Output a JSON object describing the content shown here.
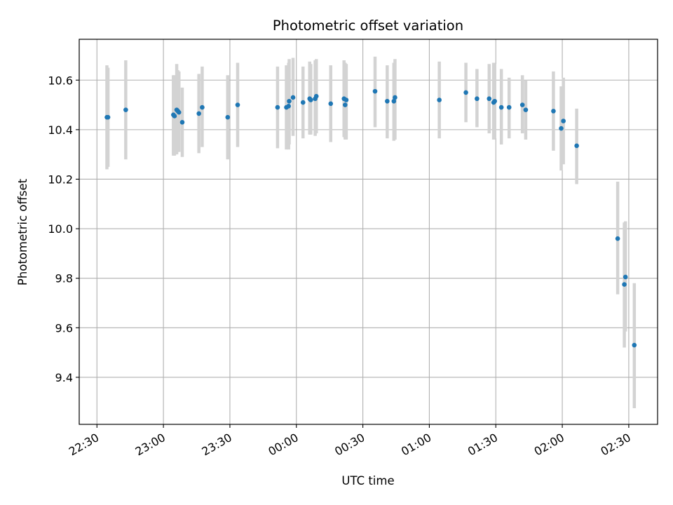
{
  "chart_data": {
    "type": "scatter",
    "title": "Photometric offset variation",
    "xlabel": "UTC time",
    "ylabel": "Photometric offset",
    "xlim": [
      "22:22",
      "02:43"
    ],
    "ylim": [
      9.21,
      10.765
    ],
    "grid": true,
    "legend": "none",
    "x_ticks": [
      "22:30",
      "23:00",
      "23:30",
      "00:00",
      "00:30",
      "01:00",
      "01:30",
      "02:00",
      "02:30"
    ],
    "y_ticks": [
      "9.4",
      "9.6",
      "9.8",
      "10.0",
      "10.2",
      "10.4",
      "10.6"
    ],
    "colors": {
      "point": "#1f77b4",
      "errorbar": "#d3d3d3",
      "grid": "#b0b0b0"
    },
    "series": [
      {
        "points": [
          {
            "x": "22:34:30",
            "y": 10.45,
            "lo": 10.24,
            "hi": 10.66
          },
          {
            "x": "22:35:00",
            "y": 10.45,
            "lo": 10.25,
            "hi": 10.65
          },
          {
            "x": "22:43:00",
            "y": 10.48,
            "lo": 10.28,
            "hi": 10.68
          },
          {
            "x": "23:04:30",
            "y": 10.46,
            "lo": 10.295,
            "hi": 10.62
          },
          {
            "x": "23:05:00",
            "y": 10.455,
            "lo": 10.295,
            "hi": 10.62
          },
          {
            "x": "23:06:00",
            "y": 10.48,
            "lo": 10.3,
            "hi": 10.665
          },
          {
            "x": "23:06:30",
            "y": 10.475,
            "lo": 10.31,
            "hi": 10.64
          },
          {
            "x": "23:07:00",
            "y": 10.47,
            "lo": 10.31,
            "hi": 10.635
          },
          {
            "x": "23:08:30",
            "y": 10.43,
            "lo": 10.29,
            "hi": 10.57
          },
          {
            "x": "23:16:00",
            "y": 10.465,
            "lo": 10.305,
            "hi": 10.625
          },
          {
            "x": "23:17:30",
            "y": 10.49,
            "lo": 10.33,
            "hi": 10.655
          },
          {
            "x": "23:29:00",
            "y": 10.45,
            "lo": 10.28,
            "hi": 10.62
          },
          {
            "x": "23:33:30",
            "y": 10.5,
            "lo": 10.33,
            "hi": 10.67
          },
          {
            "x": "23:51:30",
            "y": 10.49,
            "lo": 10.325,
            "hi": 10.655
          },
          {
            "x": "23:55:30",
            "y": 10.49,
            "lo": 10.32,
            "hi": 10.66
          },
          {
            "x": "23:56:30",
            "y": 10.495,
            "lo": 10.32,
            "hi": 10.67
          },
          {
            "x": "23:56:45",
            "y": 10.515,
            "lo": 10.34,
            "hi": 10.685
          },
          {
            "x": "23:58:30",
            "y": 10.53,
            "lo": 10.375,
            "hi": 10.69
          },
          {
            "x": "00:03:00",
            "y": 10.51,
            "lo": 10.365,
            "hi": 10.655
          },
          {
            "x": "00:06:00",
            "y": 10.525,
            "lo": 10.38,
            "hi": 10.675
          },
          {
            "x": "00:06:30",
            "y": 10.52,
            "lo": 10.38,
            "hi": 10.665
          },
          {
            "x": "00:08:30",
            "y": 10.525,
            "lo": 10.375,
            "hi": 10.68
          },
          {
            "x": "00:09:00",
            "y": 10.535,
            "lo": 10.385,
            "hi": 10.685
          },
          {
            "x": "00:15:30",
            "y": 10.505,
            "lo": 10.35,
            "hi": 10.66
          },
          {
            "x": "00:21:30",
            "y": 10.525,
            "lo": 10.37,
            "hi": 10.68
          },
          {
            "x": "00:22:00",
            "y": 10.5,
            "lo": 10.36,
            "hi": 10.67
          },
          {
            "x": "00:22:30",
            "y": 10.52,
            "lo": 10.36,
            "hi": 10.665
          },
          {
            "x": "00:35:30",
            "y": 10.555,
            "lo": 10.41,
            "hi": 10.695
          },
          {
            "x": "00:41:00",
            "y": 10.515,
            "lo": 10.365,
            "hi": 10.66
          },
          {
            "x": "00:44:00",
            "y": 10.515,
            "lo": 10.355,
            "hi": 10.67
          },
          {
            "x": "00:44:30",
            "y": 10.53,
            "lo": 10.36,
            "hi": 10.685
          },
          {
            "x": "01:04:30",
            "y": 10.52,
            "lo": 10.365,
            "hi": 10.675
          },
          {
            "x": "01:16:30",
            "y": 10.55,
            "lo": 10.43,
            "hi": 10.67
          },
          {
            "x": "01:21:30",
            "y": 10.525,
            "lo": 10.41,
            "hi": 10.645
          },
          {
            "x": "01:27:00",
            "y": 10.525,
            "lo": 10.385,
            "hi": 10.665
          },
          {
            "x": "01:29:00",
            "y": 10.51,
            "lo": 10.36,
            "hi": 10.67
          },
          {
            "x": "01:29:30",
            "y": 10.515,
            "lo": 10.365,
            "hi": 10.665
          },
          {
            "x": "01:32:30",
            "y": 10.49,
            "lo": 10.34,
            "hi": 10.645
          },
          {
            "x": "01:36:00",
            "y": 10.49,
            "lo": 10.365,
            "hi": 10.61
          },
          {
            "x": "01:42:00",
            "y": 10.5,
            "lo": 10.385,
            "hi": 10.62
          },
          {
            "x": "01:43:30",
            "y": 10.48,
            "lo": 10.36,
            "hi": 10.6
          },
          {
            "x": "01:56:00",
            "y": 10.475,
            "lo": 10.315,
            "hi": 10.635
          },
          {
            "x": "01:59:30",
            "y": 10.405,
            "lo": 10.235,
            "hi": 10.575
          },
          {
            "x": "02:00:30",
            "y": 10.435,
            "lo": 10.26,
            "hi": 10.61
          },
          {
            "x": "02:06:30",
            "y": 10.335,
            "lo": 10.18,
            "hi": 10.485
          },
          {
            "x": "02:25:00",
            "y": 9.96,
            "lo": 9.735,
            "hi": 10.19
          },
          {
            "x": "02:28:00",
            "y": 9.775,
            "lo": 9.52,
            "hi": 10.025
          },
          {
            "x": "02:28:30",
            "y": 9.805,
            "lo": 9.585,
            "hi": 10.03
          },
          {
            "x": "02:32:30",
            "y": 9.53,
            "lo": 9.275,
            "hi": 9.78
          }
        ]
      }
    ]
  }
}
